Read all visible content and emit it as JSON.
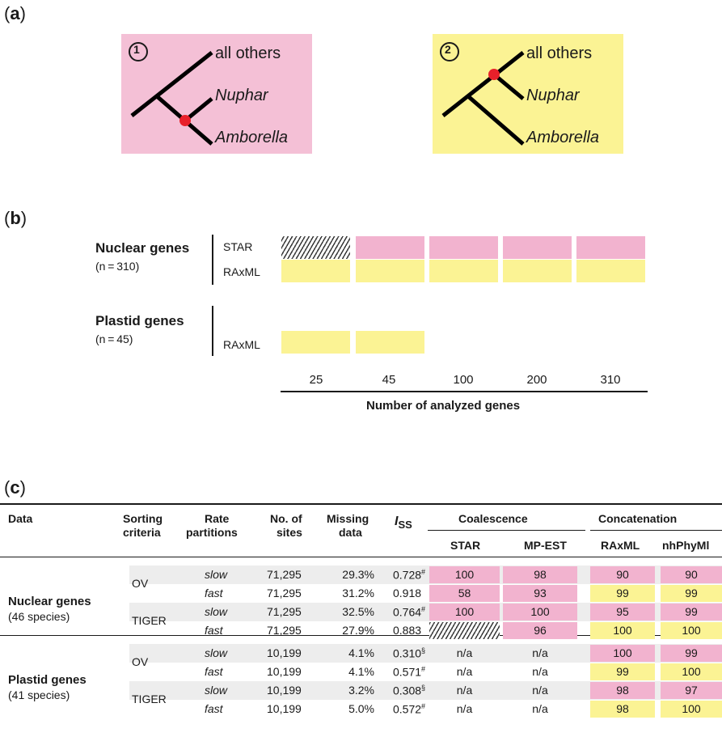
{
  "panel_labels": {
    "a": "a",
    "b": "b",
    "c": "c"
  },
  "colors": {
    "pink": "#f2b3cf",
    "yellow": "#fbf394",
    "red_node": "#e8202a",
    "shade": "#ededed"
  },
  "trees": [
    {
      "number": "1",
      "top": "all others",
      "mid": "Nuphar",
      "bottom": "Amborella",
      "bg": "#f4c0d6"
    },
    {
      "number": "2",
      "top": "all others",
      "mid": "Nuphar",
      "bottom": "Amborella",
      "bg": "#fbf394"
    }
  ],
  "panel_b": {
    "nuclear": {
      "title": "Nuclear genes",
      "n": "(n = 310)",
      "methods": [
        "STAR",
        "RAxML"
      ]
    },
    "plastid": {
      "title": "Plastid genes",
      "n": "(n = 45)",
      "methods": [
        "RAxML"
      ]
    },
    "ticks": [
      "25",
      "45",
      "100",
      "200",
      "310"
    ],
    "axis_title": "Number of analyzed genes",
    "rows": [
      [
        "hatch",
        "pink",
        "pink",
        "pink",
        "pink"
      ],
      [
        "yellow",
        "yellow",
        "yellow",
        "yellow",
        "yellow"
      ],
      [
        "yellow",
        "yellow",
        null,
        null,
        null
      ]
    ]
  },
  "table": {
    "headers": {
      "data": "Data",
      "sorting_1": "Sorting",
      "sorting_2": "criteria",
      "rate_1": "Rate",
      "rate_2": "partitions",
      "sites_1": "No. of",
      "sites_2": "sites",
      "missing_1": "Missing",
      "missing_2": "data",
      "iss": "I",
      "iss_sub": "SS",
      "coalescence": "Coalescence",
      "concatenation": "Concatenation",
      "star": "STAR",
      "mpest": "MP-EST",
      "raxml": "RAxML",
      "nhphyml": "nhPhyMl"
    },
    "groups": [
      {
        "name": "Nuclear genes",
        "species": "(46 species)",
        "criteria": [
          {
            "name": "OV",
            "rows": [
              {
                "rate": "slow",
                "sites": "71,295",
                "missing": "29.3%",
                "iss": "0.728",
                "sym": "#",
                "star": "100",
                "star_c": "pink",
                "mpest": "98",
                "mpest_c": "pink",
                "raxml": "90",
                "raxml_c": "pink",
                "nh": "90",
                "nh_c": "pink"
              },
              {
                "rate": "fast",
                "sites": "71,295",
                "missing": "31.2%",
                "iss": "0.918",
                "sym": "",
                "star": "58",
                "star_c": "pink",
                "mpest": "93",
                "mpest_c": "pink",
                "raxml": "99",
                "raxml_c": "yellow",
                "nh": "99",
                "nh_c": "yellow"
              }
            ]
          },
          {
            "name": "TIGER",
            "rows": [
              {
                "rate": "slow",
                "sites": "71,295",
                "missing": "32.5%",
                "iss": "0.764",
                "sym": "#",
                "star": "100",
                "star_c": "pink",
                "mpest": "100",
                "mpest_c": "pink",
                "raxml": "95",
                "raxml_c": "pink",
                "nh": "99",
                "nh_c": "pink"
              },
              {
                "rate": "fast",
                "sites": "71,295",
                "missing": "27.9%",
                "iss": "0.883",
                "sym": "",
                "star": "",
                "star_c": "hatch",
                "mpest": "96",
                "mpest_c": "pink",
                "raxml": "100",
                "raxml_c": "yellow",
                "nh": "100",
                "nh_c": "yellow"
              }
            ]
          }
        ]
      },
      {
        "name": "Plastid genes",
        "species": "(41 species)",
        "criteria": [
          {
            "name": "OV",
            "rows": [
              {
                "rate": "slow",
                "sites": "10,199",
                "missing": "4.1%",
                "iss": "0.310",
                "sym": "§",
                "star": "n/a",
                "star_c": "",
                "mpest": "n/a",
                "mpest_c": "",
                "raxml": "100",
                "raxml_c": "pink",
                "nh": "99",
                "nh_c": "pink"
              },
              {
                "rate": "fast",
                "sites": "10,199",
                "missing": "4.1%",
                "iss": "0.571",
                "sym": "#",
                "star": "n/a",
                "star_c": "",
                "mpest": "n/a",
                "mpest_c": "",
                "raxml": "99",
                "raxml_c": "yellow",
                "nh": "100",
                "nh_c": "yellow"
              }
            ]
          },
          {
            "name": "TIGER",
            "rows": [
              {
                "rate": "slow",
                "sites": "10,199",
                "missing": "3.2%",
                "iss": "0.308",
                "sym": "§",
                "star": "n/a",
                "star_c": "",
                "mpest": "n/a",
                "mpest_c": "",
                "raxml": "98",
                "raxml_c": "pink",
                "nh": "97",
                "nh_c": "pink"
              },
              {
                "rate": "fast",
                "sites": "10,199",
                "missing": "5.0%",
                "iss": "0.572",
                "sym": "#",
                "star": "n/a",
                "star_c": "",
                "mpest": "n/a",
                "mpest_c": "",
                "raxml": "98",
                "raxml_c": "yellow",
                "nh": "100",
                "nh_c": "yellow"
              }
            ]
          }
        ]
      }
    ]
  }
}
